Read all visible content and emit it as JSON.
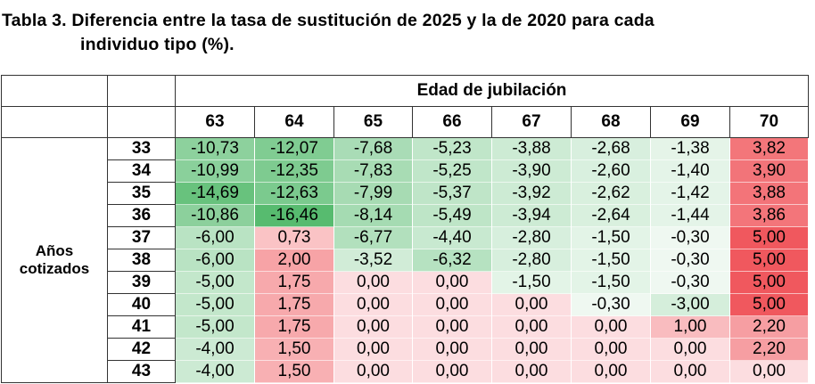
{
  "title_line1": "Tabla 3. Diferencia entre la tasa de sustitución de 2025 y la de 2020 para cada",
  "title_line2": "individuo tipo (%).",
  "col_group_label": "Edad de jubilación",
  "row_group_label_1": "Años",
  "row_group_label_2": "cotizados",
  "columns": [
    "63",
    "64",
    "65",
    "66",
    "67",
    "68",
    "69",
    "70"
  ],
  "rows": [
    {
      "label": "33",
      "values": [
        "-10,73",
        "-12,07",
        "-7,68",
        "-5,23",
        "-3,88",
        "-2,68",
        "-1,38",
        "3,82"
      ]
    },
    {
      "label": "34",
      "values": [
        "-10,99",
        "-12,35",
        "-7,83",
        "-5,25",
        "-3,90",
        "-2,60",
        "-1,40",
        "3,90"
      ]
    },
    {
      "label": "35",
      "values": [
        "-14,69",
        "-12,63",
        "-7,99",
        "-5,37",
        "-3,92",
        "-2,62",
        "-1,42",
        "3,88"
      ]
    },
    {
      "label": "36",
      "values": [
        "-10,86",
        "-16,46",
        "-8,14",
        "-5,49",
        "-3,94",
        "-2,64",
        "-1,44",
        "3,86"
      ]
    },
    {
      "label": "37",
      "values": [
        "-6,00",
        "0,73",
        "-6,77",
        "-4,40",
        "-2,80",
        "-1,50",
        "-0,30",
        "5,00"
      ]
    },
    {
      "label": "38",
      "values": [
        "-6,00",
        "2,00",
        "-3,52",
        "-6,32",
        "-2,80",
        "-1,50",
        "-0,30",
        "5,00"
      ]
    },
    {
      "label": "39",
      "values": [
        "-5,00",
        "1,75",
        "0,00",
        "0,00",
        "-1,50",
        "-1,50",
        "-0,30",
        "5,00"
      ]
    },
    {
      "label": "40",
      "values": [
        "-5,00",
        "1,75",
        "0,00",
        "0,00",
        "0,00",
        "-0,30",
        "-3,00",
        "5,00"
      ]
    },
    {
      "label": "41",
      "values": [
        "-5,00",
        "1,75",
        "0,00",
        "0,00",
        "0,00",
        "0,00",
        "1,00",
        "2,20"
      ]
    },
    {
      "label": "42",
      "values": [
        "-4,00",
        "1,50",
        "0,00",
        "0,00",
        "0,00",
        "0,00",
        "0,00",
        "2,20"
      ]
    },
    {
      "label": "43",
      "values": [
        "-4,00",
        "1,50",
        "0,00",
        "0,00",
        "0,00",
        "0,00",
        "0,00",
        "0,00"
      ]
    }
  ],
  "colors": {
    "green": "#57bb6f",
    "red": "#f0585e",
    "zero": "#fcdde0"
  }
}
